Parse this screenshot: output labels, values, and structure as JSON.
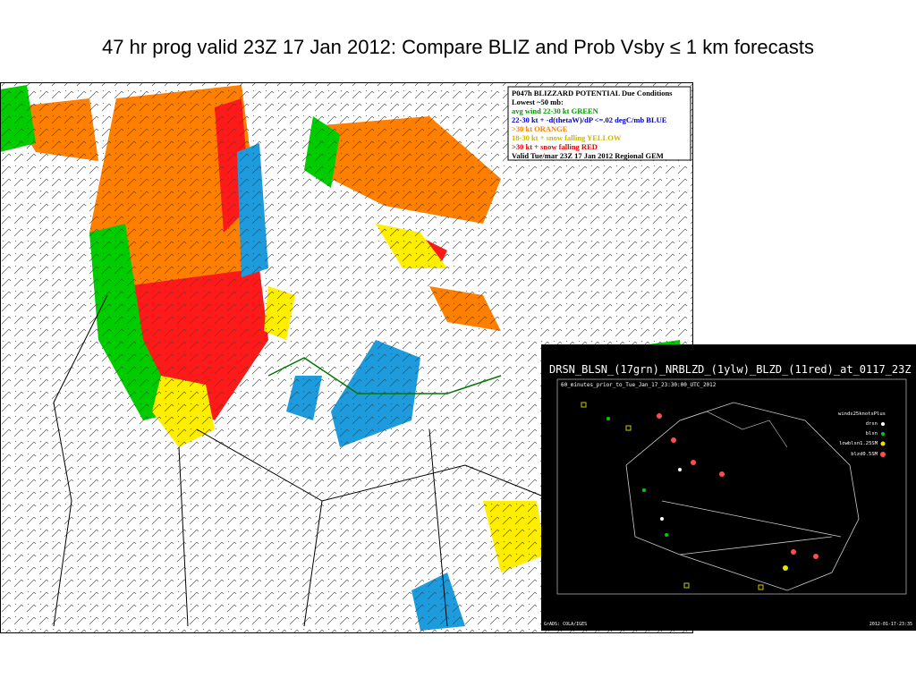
{
  "title": "47 hr prog valid 23Z 17 Jan 2012:  Compare BLIZ and Prob Vsby ≤ 1 km forecasts",
  "left_map": {
    "legend": [
      "P047h  BLIZZARD POTENTIAL Due Conditions",
      "Lowest ~50 mb:",
      "avg wind 22-30 kt  GREEN",
      "22-30 kt + -d(thetaW)/dP <=.02 degC/mb  BLUE",
      ">30 kt  ORANGE",
      "18-30 kt + snow falling  YELLOW",
      ">30 kt + snow falling  RED",
      "Valid Tue/mar  23Z  17 Jan 2012  Regional GEM"
    ]
  },
  "right_map": {
    "title": "DRSN_BLSN_(17grn)_NRBLZD_(1ylw)_BLZD_(11red)_at_0117_23Z",
    "subtitle": "60_minutes_prior_to_Tue_Jan_17_23:30:00_UTC_2012",
    "legend": [
      "winds25knotsPlus",
      "drsn",
      "blsn",
      "lowblsn1.25SM",
      "blzd0.5SM"
    ],
    "footer_left": "GrADS: COLA/IGES",
    "footer_right": "2012-01-17-23:35"
  }
}
